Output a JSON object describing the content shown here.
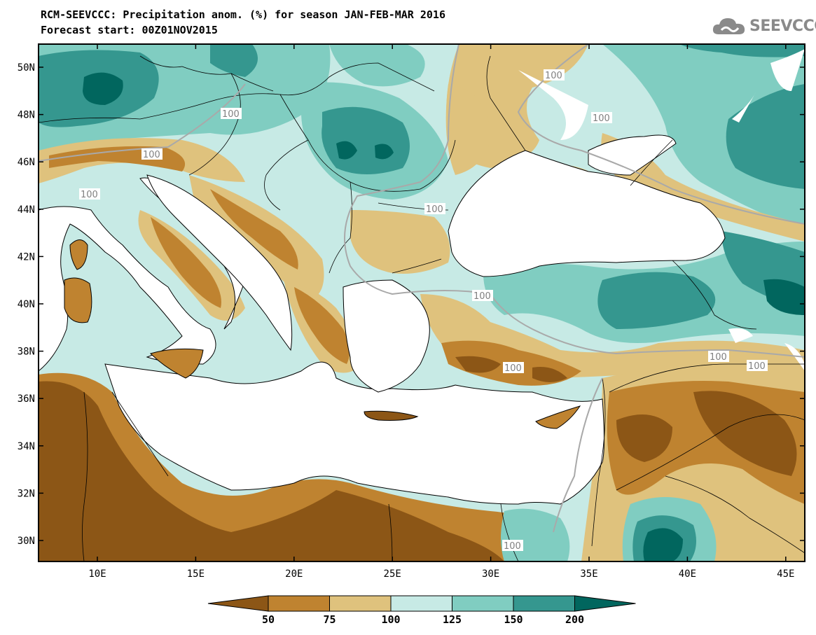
{
  "title": {
    "line1": "RCM-SEEVCCC: Precipitation anom. (%) for season JAN-FEB-MAR 2016",
    "line2": "Forecast start: 00Z01NOV2015"
  },
  "logo": {
    "text": "SEEVCCC",
    "icon": "cloud-icon"
  },
  "axes": {
    "lat_labels": [
      "50N",
      "48N",
      "46N",
      "44N",
      "42N",
      "40N",
      "38N",
      "36N",
      "34N",
      "32N",
      "30N"
    ],
    "lon_labels": [
      "10E",
      "15E",
      "20E",
      "25E",
      "30E",
      "35E",
      "40E",
      "45E"
    ]
  },
  "contour_labels": [
    "100",
    "100",
    "100",
    "100",
    "100",
    "100",
    "100",
    "100",
    "100",
    "100",
    "100"
  ],
  "colorbar": {
    "colors": [
      "#8c5616",
      "#bf8330",
      "#dfc27d",
      "#c7eae5",
      "#80cdc1",
      "#35978f",
      "#01665e"
    ],
    "tick_labels": [
      "50",
      "75",
      "100",
      "125",
      "150",
      "200"
    ]
  },
  "colors": {
    "water": "#ffffff",
    "border": "#000000"
  }
}
